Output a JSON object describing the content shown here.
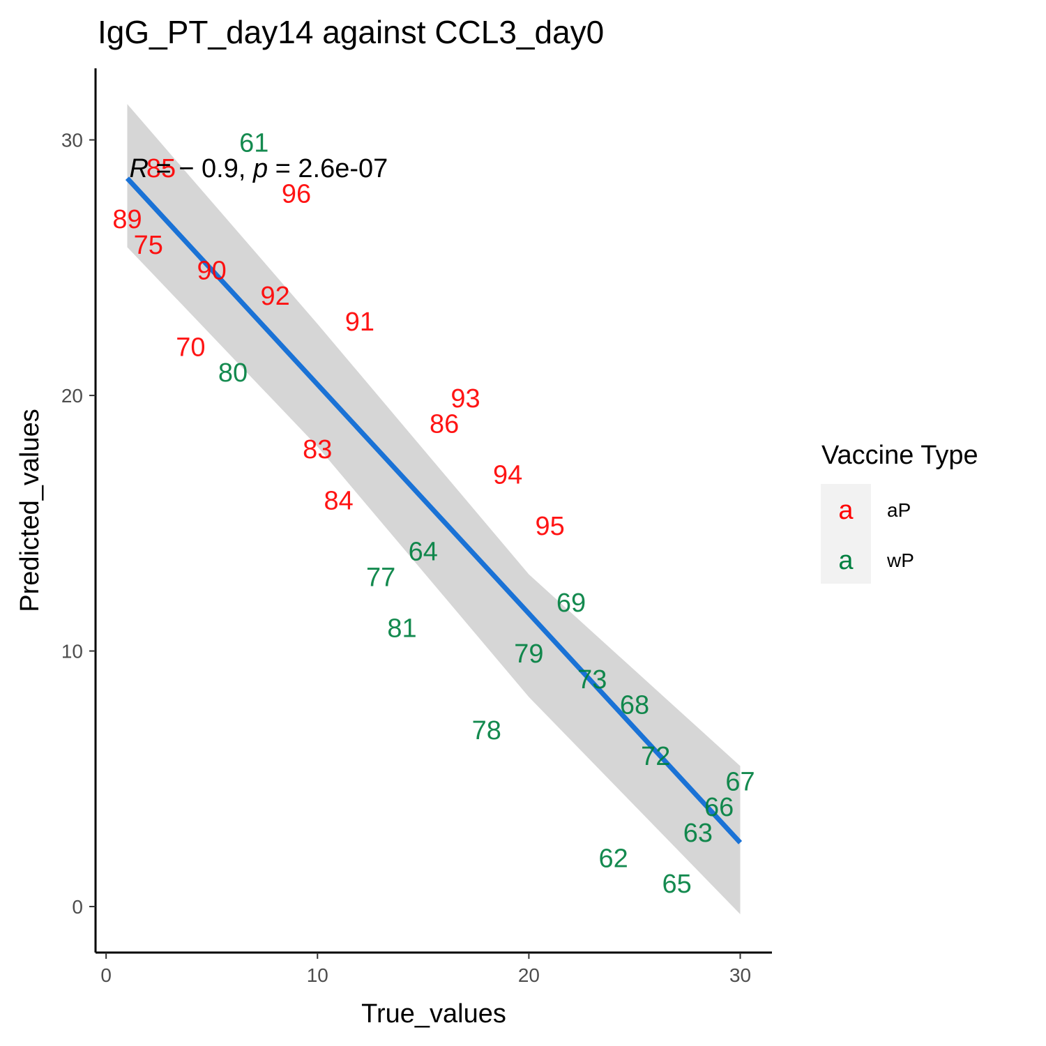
{
  "chart_data": {
    "type": "scatter",
    "title": "IgG_PT_day14 against CCL3_day0",
    "xlabel": "True_values",
    "ylabel": "Predicted_values",
    "xlim": [
      -0.5,
      31.5
    ],
    "ylim": [
      -1.8,
      32.8
    ],
    "xticks": [
      0,
      10,
      20,
      30
    ],
    "yticks": [
      0,
      10,
      20,
      30
    ],
    "grid": false,
    "annotation": {
      "r_symbol": "R",
      "r_text": " = − 0.9, ",
      "p_symbol": "p",
      "p_text": " = 2.6e-07",
      "x": 1.1,
      "y": 28.9
    },
    "regression": {
      "x_start": 1.0,
      "y_start": 28.5,
      "x_end": 30.0,
      "y_end": 2.5,
      "band_upper": [
        [
          1.0,
          31.4
        ],
        [
          10.0,
          22.8
        ],
        [
          20.0,
          13.0
        ],
        [
          30.0,
          5.5
        ]
      ],
      "band_lower": [
        [
          30.0,
          -0.3
        ],
        [
          20.0,
          8.2
        ],
        [
          10.0,
          18.0
        ],
        [
          1.0,
          25.8
        ]
      ],
      "color": "#1a72d6",
      "band_color": "#d6d6d6"
    },
    "legend": {
      "title": "Vaccine Type",
      "position": "right",
      "key_glyph": "a",
      "entries": [
        {
          "name": "aP",
          "color": "#ff0000"
        },
        {
          "name": "wP",
          "color": "#008040"
        }
      ]
    },
    "series": [
      {
        "name": "aP",
        "color": "#ff0000",
        "points": [
          {
            "label": "85",
            "x": 2.6,
            "y": 28.9
          },
          {
            "label": "96",
            "x": 9.0,
            "y": 27.9
          },
          {
            "label": "89",
            "x": 1.0,
            "y": 26.9
          },
          {
            "label": "75",
            "x": 2.0,
            "y": 25.9
          },
          {
            "label": "90",
            "x": 5.0,
            "y": 24.9
          },
          {
            "label": "92",
            "x": 8.0,
            "y": 23.9
          },
          {
            "label": "91",
            "x": 12.0,
            "y": 22.9
          },
          {
            "label": "70",
            "x": 4.0,
            "y": 21.9
          },
          {
            "label": "93",
            "x": 17.0,
            "y": 19.9
          },
          {
            "label": "86",
            "x": 16.0,
            "y": 18.9
          },
          {
            "label": "83",
            "x": 10.0,
            "y": 17.9
          },
          {
            "label": "94",
            "x": 19.0,
            "y": 16.9
          },
          {
            "label": "84",
            "x": 11.0,
            "y": 15.9
          },
          {
            "label": "95",
            "x": 21.0,
            "y": 14.9
          }
        ]
      },
      {
        "name": "wP",
        "color": "#008040",
        "points": [
          {
            "label": "61",
            "x": 7.0,
            "y": 29.9
          },
          {
            "label": "80",
            "x": 6.0,
            "y": 20.9
          },
          {
            "label": "64",
            "x": 15.0,
            "y": 13.9
          },
          {
            "label": "77",
            "x": 13.0,
            "y": 12.9
          },
          {
            "label": "69",
            "x": 22.0,
            "y": 11.9
          },
          {
            "label": "81",
            "x": 14.0,
            "y": 10.9
          },
          {
            "label": "79",
            "x": 20.0,
            "y": 9.9
          },
          {
            "label": "73",
            "x": 23.0,
            "y": 8.9
          },
          {
            "label": "68",
            "x": 25.0,
            "y": 7.9
          },
          {
            "label": "78",
            "x": 18.0,
            "y": 6.9
          },
          {
            "label": "72",
            "x": 26.0,
            "y": 5.9
          },
          {
            "label": "67",
            "x": 30.0,
            "y": 4.9
          },
          {
            "label": "66",
            "x": 29.0,
            "y": 3.9
          },
          {
            "label": "63",
            "x": 28.0,
            "y": 2.9
          },
          {
            "label": "62",
            "x": 24.0,
            "y": 1.9
          },
          {
            "label": "65",
            "x": 27.0,
            "y": 0.9
          }
        ]
      }
    ]
  }
}
